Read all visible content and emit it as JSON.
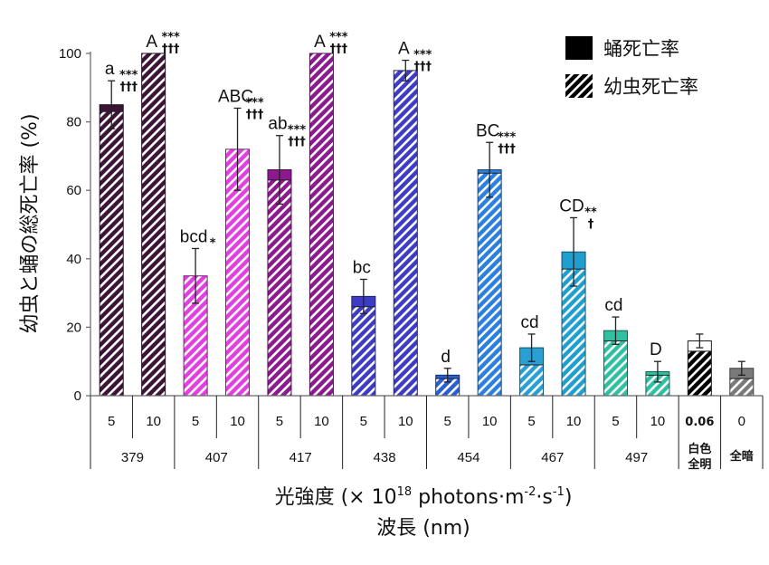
{
  "chart_data": {
    "type": "bar",
    "ylabel": "幼虫と蛹の総死亡率 (%)",
    "xlabel_line1": "光強度 (× 10",
    "xlabel_sup1": "18",
    "xlabel_mid": " photons·m",
    "xlabel_sup2": "-2",
    "xlabel_mid2": "·s",
    "xlabel_sup3": "-1",
    "xlabel_end": ")",
    "xlabel_line2": "波長 (nm)",
    "ylim": [
      0,
      100
    ],
    "yticks": [
      "0",
      "20",
      "40",
      "60",
      "80",
      "100"
    ],
    "legend": [
      {
        "name": "蛹死亡率",
        "style": "solid"
      },
      {
        "name": "幼虫死亡率",
        "style": "hatched"
      }
    ],
    "groups": [
      {
        "label": "379",
        "bars": [
          0,
          1
        ]
      },
      {
        "label": "407",
        "bars": [
          2,
          3
        ]
      },
      {
        "label": "417",
        "bars": [
          4,
          5
        ]
      },
      {
        "label": "438",
        "bars": [
          6,
          7
        ]
      },
      {
        "label": "454",
        "bars": [
          8,
          9
        ]
      },
      {
        "label": "467",
        "bars": [
          10,
          11
        ]
      },
      {
        "label": "497",
        "bars": [
          12,
          13
        ]
      },
      {
        "label": "白色\n全明",
        "bars": [
          14
        ],
        "small": true
      },
      {
        "label": "全暗",
        "bars": [
          15
        ],
        "small": true
      }
    ],
    "bars": [
      {
        "intensity": "5",
        "wavelength": "379",
        "total": 85,
        "larva": 83,
        "pupa": 2,
        "err": 7,
        "letter": "a",
        "sig1": "***",
        "sig2": "†††",
        "color": "#3c1436"
      },
      {
        "intensity": "10",
        "wavelength": "379",
        "total": 100,
        "larva": 100,
        "pupa": 0,
        "err": 0,
        "letter": "A",
        "sig1": "***",
        "sig2": "†††",
        "color": "#3c1436"
      },
      {
        "intensity": "5",
        "wavelength": "407",
        "total": 35,
        "larva": 35,
        "pupa": 0,
        "err": 8,
        "letter": "bcd",
        "sig1": "*",
        "sig2": "",
        "color": "#e23fe0"
      },
      {
        "intensity": "10",
        "wavelength": "407",
        "total": 72,
        "larva": 72,
        "pupa": 0,
        "err": 12,
        "letter": "ABC",
        "sig1": "***",
        "sig2": "†††",
        "color": "#e23fe0"
      },
      {
        "intensity": "5",
        "wavelength": "417",
        "total": 66,
        "larva": 63,
        "pupa": 3,
        "err": 10,
        "letter": "ab",
        "sig1": "***",
        "sig2": "†††",
        "color": "#8c1a8e"
      },
      {
        "intensity": "10",
        "wavelength": "417",
        "total": 100,
        "larva": 100,
        "pupa": 0,
        "err": 0,
        "letter": "A",
        "sig1": "***",
        "sig2": "†††",
        "color": "#8c1a8e"
      },
      {
        "intensity": "5",
        "wavelength": "438",
        "total": 29,
        "larva": 26,
        "pupa": 3,
        "err": 5,
        "letter": "bc",
        "sig1": "",
        "sig2": "",
        "color": "#3e3bc4"
      },
      {
        "intensity": "10",
        "wavelength": "438",
        "total": 95,
        "larva": 95,
        "pupa": 0,
        "err": 3,
        "letter": "A",
        "sig1": "***",
        "sig2": "†††",
        "color": "#3e3bc4"
      },
      {
        "intensity": "5",
        "wavelength": "454",
        "total": 6,
        "larva": 5,
        "pupa": 1,
        "err": 2,
        "letter": "d",
        "sig1": "",
        "sig2": "",
        "color": "#2a5fd4"
      },
      {
        "intensity": "10",
        "wavelength": "454",
        "total": 66,
        "larva": 65,
        "pupa": 1,
        "err": 8,
        "letter": "BC",
        "sig1": "***",
        "sig2": "†††",
        "color": "#2a7fe0"
      },
      {
        "intensity": "5",
        "wavelength": "467",
        "total": 14,
        "larva": 9,
        "pupa": 5,
        "err": 4,
        "letter": "cd",
        "sig1": "",
        "sig2": "",
        "color": "#2a9fd4"
      },
      {
        "intensity": "10",
        "wavelength": "467",
        "total": 42,
        "larva": 37,
        "pupa": 5,
        "err": 10,
        "letter": "CD",
        "sig1": "**",
        "sig2": "†",
        "color": "#1f9fd0"
      },
      {
        "intensity": "5",
        "wavelength": "497",
        "total": 19,
        "larva": 16,
        "pupa": 3,
        "err": 4,
        "letter": "cd",
        "sig1": "",
        "sig2": "",
        "color": "#2ec0a0"
      },
      {
        "intensity": "10",
        "wavelength": "497",
        "total": 7,
        "larva": 6,
        "pupa": 1,
        "err": 3,
        "letter": "D",
        "sig1": "",
        "sig2": "",
        "color": "#2ec0a0"
      },
      {
        "intensity": "0.06",
        "wavelength": "白色全明",
        "total": 16,
        "larva": 13,
        "pupa": 3,
        "err": 2,
        "letter": "",
        "sig1": "",
        "sig2": "",
        "color": "#000000",
        "pupa_color": "#ffffff"
      },
      {
        "intensity": "0",
        "wavelength": "全暗",
        "total": 8,
        "larva": 5,
        "pupa": 3,
        "err": 2,
        "letter": "",
        "sig1": "",
        "sig2": "",
        "color": "#7a7a7a"
      }
    ]
  }
}
